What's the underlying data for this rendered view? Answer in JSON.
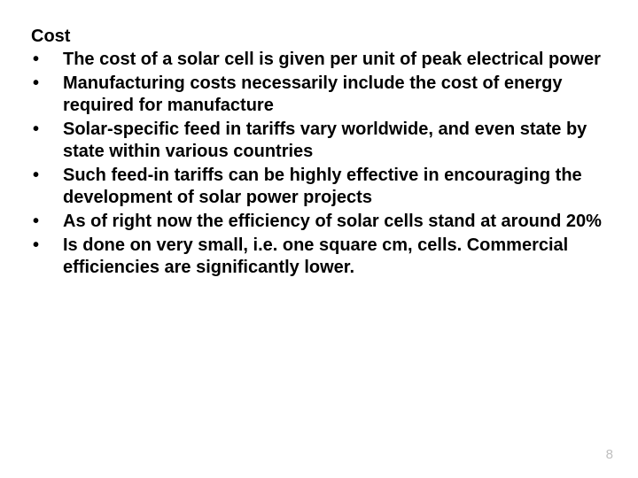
{
  "slide": {
    "heading": "Cost",
    "bullets": [
      "The cost of a solar cell is given per unit of peak electrical power",
      "Manufacturing costs necessarily include the cost of energy required for manufacture",
      "Solar-specific feed in tariffs vary worldwide, and even state by state within various countries",
      "Such feed-in tariffs can be highly effective in encouraging the development of solar power projects",
      "As of right now the efficiency of solar cells stand at around 20%",
      "Is done on very small, i.e. one square cm, cells. Commercial efficiencies are significantly lower."
    ],
    "page_number": "8"
  },
  "style": {
    "background_color": "#ffffff",
    "text_color": "#000000",
    "page_number_color": "#bfbfbf",
    "font_family": "Arial",
    "heading_fontsize": 20,
    "bullet_fontsize": 20,
    "page_number_fontsize": 15,
    "bullet_marker": "•"
  }
}
